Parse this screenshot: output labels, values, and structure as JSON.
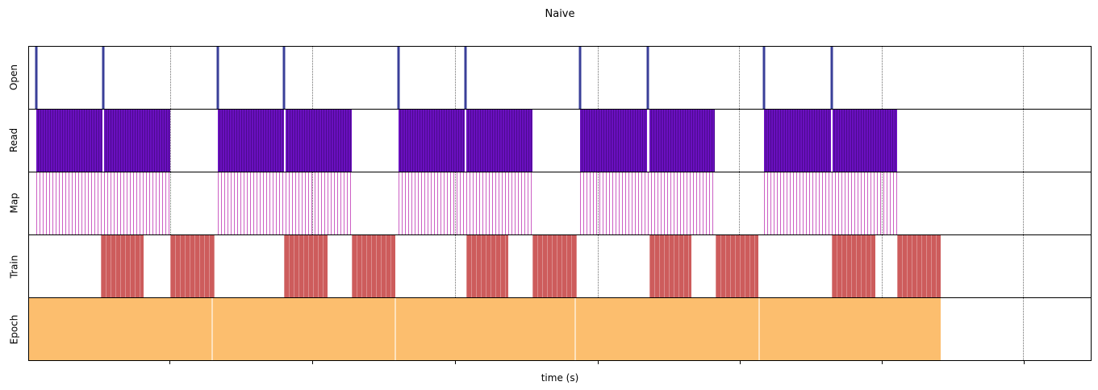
{
  "chart_data": {
    "type": "timeline",
    "title": "Naive",
    "xlabel": "time (s)",
    "x_axis": {
      "range": [
        0,
        1
      ],
      "tick_labels_visible": false,
      "grid_style": "dotted",
      "gridline_positions": [
        0.133,
        0.267,
        0.401,
        0.536,
        0.669,
        0.803,
        0.936
      ]
    },
    "legend": null,
    "tracks": [
      {
        "label": "Open",
        "style": "spikes",
        "color": "#3a3f99",
        "spikes": [
          0.007,
          0.07,
          0.178,
          0.24,
          0.348,
          0.411,
          0.519,
          0.583,
          0.692,
          0.756
        ]
      },
      {
        "label": "Read",
        "style": "dense",
        "color": "#6a0fbf",
        "stripe_color": "#4c0a8f",
        "intervals": [
          [
            0.007,
            0.069
          ],
          [
            0.071,
            0.133
          ],
          [
            0.178,
            0.24
          ],
          [
            0.242,
            0.304
          ],
          [
            0.348,
            0.41
          ],
          [
            0.412,
            0.474
          ],
          [
            0.519,
            0.582
          ],
          [
            0.584,
            0.646
          ],
          [
            0.692,
            0.755
          ],
          [
            0.757,
            0.818
          ]
        ]
      },
      {
        "label": "Map",
        "style": "sparse",
        "color": "#cc5fc4",
        "intervals": [
          [
            0.007,
            0.133
          ],
          [
            0.178,
            0.304
          ],
          [
            0.348,
            0.474
          ],
          [
            0.519,
            0.646
          ],
          [
            0.692,
            0.818
          ]
        ]
      },
      {
        "label": "Train",
        "style": "block-striped",
        "color": "#cd5c5c",
        "intervals": [
          [
            0.068,
            0.108
          ],
          [
            0.133,
            0.175
          ],
          [
            0.24,
            0.281
          ],
          [
            0.304,
            0.345
          ],
          [
            0.412,
            0.451
          ],
          [
            0.474,
            0.516
          ],
          [
            0.584,
            0.624
          ],
          [
            0.647,
            0.687
          ],
          [
            0.756,
            0.797
          ],
          [
            0.818,
            0.859
          ]
        ]
      },
      {
        "label": "Epoch",
        "style": "solid",
        "color": "#fcbe6e",
        "intervals": [
          [
            0.0,
            0.859
          ]
        ],
        "separators": [
          0.172,
          0.344,
          0.514,
          0.687
        ]
      }
    ]
  }
}
